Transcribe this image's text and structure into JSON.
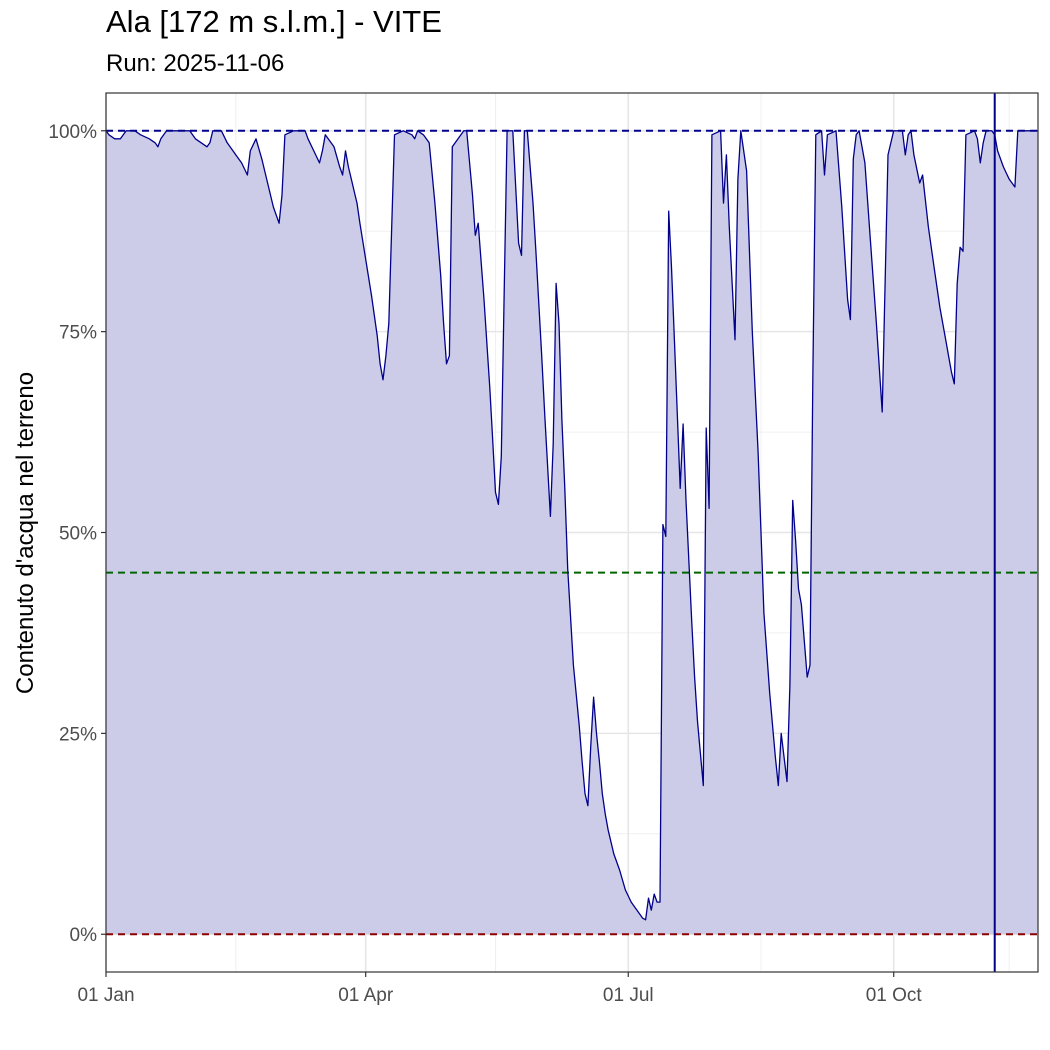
{
  "chart_data": {
    "type": "area",
    "title": "Ala [172 m s.l.m.] - VITE",
    "subtitle": "Run: 2025-11-06",
    "ylabel": "Contenuto d'acqua nel terreno",
    "xlabel": "",
    "x_ticks": [
      "01 Jan",
      "01 Apr",
      "01 Jul",
      "01 Oct"
    ],
    "y_ticks": [
      "0%",
      "25%",
      "50%",
      "75%",
      "100%"
    ],
    "ylim": [
      -0.047,
      1.047
    ],
    "xlim_days": [
      0,
      323
    ],
    "grid": true,
    "reference_lines": [
      {
        "value": 1.0,
        "color": "#00008b",
        "style": "dashed"
      },
      {
        "value": 0.45,
        "color": "#006400",
        "style": "dashed"
      },
      {
        "value": 0.0,
        "color": "#8b0000",
        "style": "dashed"
      }
    ],
    "current_day_marker": {
      "day": 308,
      "color": "#00008b"
    },
    "series": [
      {
        "line_color": "#00008b",
        "fill_color": "#cccce8",
        "points": [
          [
            0,
            1.0
          ],
          [
            1,
            0.995
          ],
          [
            3,
            0.99
          ],
          [
            5,
            0.99
          ],
          [
            7,
            1.0
          ],
          [
            10,
            1.0
          ],
          [
            12,
            0.995
          ],
          [
            15,
            0.99
          ],
          [
            17,
            0.985
          ],
          [
            18,
            0.98
          ],
          [
            19,
            0.99
          ],
          [
            20,
            0.995
          ],
          [
            21,
            1.0
          ],
          [
            25,
            1.0
          ],
          [
            29,
            1.0
          ],
          [
            31,
            0.99
          ],
          [
            33,
            0.985
          ],
          [
            35,
            0.98
          ],
          [
            36,
            0.985
          ],
          [
            37,
            1.0
          ],
          [
            40,
            1.0
          ],
          [
            42,
            0.985
          ],
          [
            44,
            0.975
          ],
          [
            45,
            0.97
          ],
          [
            47,
            0.96
          ],
          [
            49,
            0.945
          ],
          [
            50,
            0.975
          ],
          [
            52,
            0.99
          ],
          [
            54,
            0.965
          ],
          [
            56,
            0.935
          ],
          [
            58,
            0.905
          ],
          [
            60,
            0.885
          ],
          [
            61,
            0.92
          ],
          [
            62,
            0.995
          ],
          [
            65,
            1.0
          ],
          [
            69,
            1.0
          ],
          [
            70,
            0.99
          ],
          [
            72,
            0.975
          ],
          [
            74,
            0.96
          ],
          [
            75,
            0.975
          ],
          [
            76,
            0.995
          ],
          [
            79,
            0.98
          ],
          [
            81,
            0.955
          ],
          [
            82,
            0.945
          ],
          [
            83,
            0.975
          ],
          [
            84,
            0.955
          ],
          [
            85,
            0.94
          ],
          [
            86,
            0.925
          ],
          [
            87,
            0.91
          ],
          [
            88,
            0.885
          ],
          [
            90,
            0.84
          ],
          [
            92,
            0.795
          ],
          [
            94,
            0.745
          ],
          [
            95,
            0.71
          ],
          [
            96,
            0.69
          ],
          [
            97,
            0.72
          ],
          [
            98,
            0.76
          ],
          [
            99,
            0.88
          ],
          [
            100,
            0.995
          ],
          [
            103,
            1.0
          ],
          [
            106,
            0.995
          ],
          [
            107,
            0.99
          ],
          [
            108,
            1.0
          ],
          [
            110,
            0.995
          ],
          [
            112,
            0.985
          ],
          [
            114,
            0.91
          ],
          [
            116,
            0.82
          ],
          [
            117,
            0.76
          ],
          [
            118,
            0.71
          ],
          [
            119,
            0.72
          ],
          [
            120,
            0.98
          ],
          [
            124,
            1.0
          ],
          [
            125,
            1.0
          ],
          [
            127,
            0.92
          ],
          [
            128,
            0.87
          ],
          [
            129,
            0.885
          ],
          [
            131,
            0.79
          ],
          [
            133,
            0.68
          ],
          [
            134,
            0.615
          ],
          [
            135,
            0.55
          ],
          [
            136,
            0.535
          ],
          [
            137,
            0.595
          ],
          [
            138,
            0.8
          ],
          [
            139,
            1.0
          ],
          [
            141,
            1.0
          ],
          [
            142,
            0.93
          ],
          [
            143,
            0.86
          ],
          [
            144,
            0.845
          ],
          [
            145,
            1.0
          ],
          [
            146,
            1.0
          ],
          [
            148,
            0.91
          ],
          [
            149,
            0.85
          ],
          [
            151,
            0.72
          ],
          [
            152,
            0.65
          ],
          [
            154,
            0.52
          ],
          [
            155,
            0.61
          ],
          [
            156,
            0.81
          ],
          [
            157,
            0.76
          ],
          [
            158,
            0.64
          ],
          [
            159,
            0.555
          ],
          [
            160,
            0.455
          ],
          [
            162,
            0.335
          ],
          [
            164,
            0.26
          ],
          [
            165,
            0.215
          ],
          [
            166,
            0.175
          ],
          [
            167,
            0.16
          ],
          [
            168,
            0.235
          ],
          [
            169,
            0.295
          ],
          [
            170,
            0.25
          ],
          [
            171,
            0.215
          ],
          [
            172,
            0.175
          ],
          [
            173,
            0.15
          ],
          [
            174,
            0.13
          ],
          [
            176,
            0.1
          ],
          [
            178,
            0.08
          ],
          [
            180,
            0.055
          ],
          [
            182,
            0.04
          ],
          [
            184,
            0.03
          ],
          [
            186,
            0.02
          ],
          [
            187,
            0.018
          ],
          [
            188,
            0.045
          ],
          [
            189,
            0.03
          ],
          [
            190,
            0.05
          ],
          [
            191,
            0.04
          ],
          [
            192,
            0.04
          ],
          [
            193,
            0.51
          ],
          [
            194,
            0.495
          ],
          [
            195,
            0.9
          ],
          [
            196,
            0.83
          ],
          [
            197,
            0.74
          ],
          [
            199,
            0.555
          ],
          [
            200,
            0.635
          ],
          [
            201,
            0.54
          ],
          [
            203,
            0.39
          ],
          [
            204,
            0.32
          ],
          [
            205,
            0.265
          ],
          [
            207,
            0.185
          ],
          [
            208,
            0.63
          ],
          [
            209,
            0.53
          ],
          [
            210,
            0.995
          ],
          [
            213,
            1.0
          ],
          [
            214,
            0.91
          ],
          [
            215,
            0.97
          ],
          [
            216,
            0.88
          ],
          [
            218,
            0.74
          ],
          [
            219,
            0.94
          ],
          [
            220,
            1.0
          ],
          [
            222,
            0.95
          ],
          [
            224,
            0.75
          ],
          [
            226,
            0.6
          ],
          [
            228,
            0.4
          ],
          [
            230,
            0.3
          ],
          [
            232,
            0.22
          ],
          [
            233,
            0.185
          ],
          [
            234,
            0.25
          ],
          [
            236,
            0.19
          ],
          [
            237,
            0.31
          ],
          [
            238,
            0.54
          ],
          [
            239,
            0.49
          ],
          [
            240,
            0.43
          ],
          [
            241,
            0.41
          ],
          [
            243,
            0.32
          ],
          [
            244,
            0.335
          ],
          [
            245,
            0.7
          ],
          [
            246,
            0.995
          ],
          [
            248,
            1.0
          ],
          [
            249,
            0.945
          ],
          [
            250,
            0.995
          ],
          [
            253,
            1.0
          ],
          [
            255,
            0.905
          ],
          [
            257,
            0.79
          ],
          [
            258,
            0.765
          ],
          [
            259,
            0.965
          ],
          [
            260,
            0.995
          ],
          [
            261,
            1.0
          ],
          [
            263,
            0.96
          ],
          [
            265,
            0.86
          ],
          [
            267,
            0.76
          ],
          [
            269,
            0.65
          ],
          [
            270,
            0.81
          ],
          [
            271,
            0.97
          ],
          [
            273,
            1.0
          ],
          [
            276,
            1.0
          ],
          [
            277,
            0.97
          ],
          [
            278,
            0.995
          ],
          [
            279,
            1.0
          ],
          [
            280,
            0.97
          ],
          [
            282,
            0.935
          ],
          [
            283,
            0.945
          ],
          [
            285,
            0.88
          ],
          [
            287,
            0.83
          ],
          [
            289,
            0.78
          ],
          [
            291,
            0.74
          ],
          [
            293,
            0.7
          ],
          [
            294,
            0.685
          ],
          [
            295,
            0.81
          ],
          [
            296,
            0.855
          ],
          [
            297,
            0.85
          ],
          [
            298,
            0.995
          ],
          [
            301,
            1.0
          ],
          [
            302,
            0.99
          ],
          [
            303,
            0.96
          ],
          [
            304,
            0.985
          ],
          [
            305,
            1.0
          ],
          [
            307,
            1.0
          ],
          [
            308,
            0.995
          ],
          [
            309,
            0.975
          ],
          [
            311,
            0.955
          ],
          [
            313,
            0.94
          ],
          [
            314,
            0.935
          ],
          [
            315,
            0.93
          ],
          [
            316,
            1.0
          ],
          [
            320,
            1.0
          ],
          [
            323,
            1.0
          ]
        ]
      }
    ]
  }
}
